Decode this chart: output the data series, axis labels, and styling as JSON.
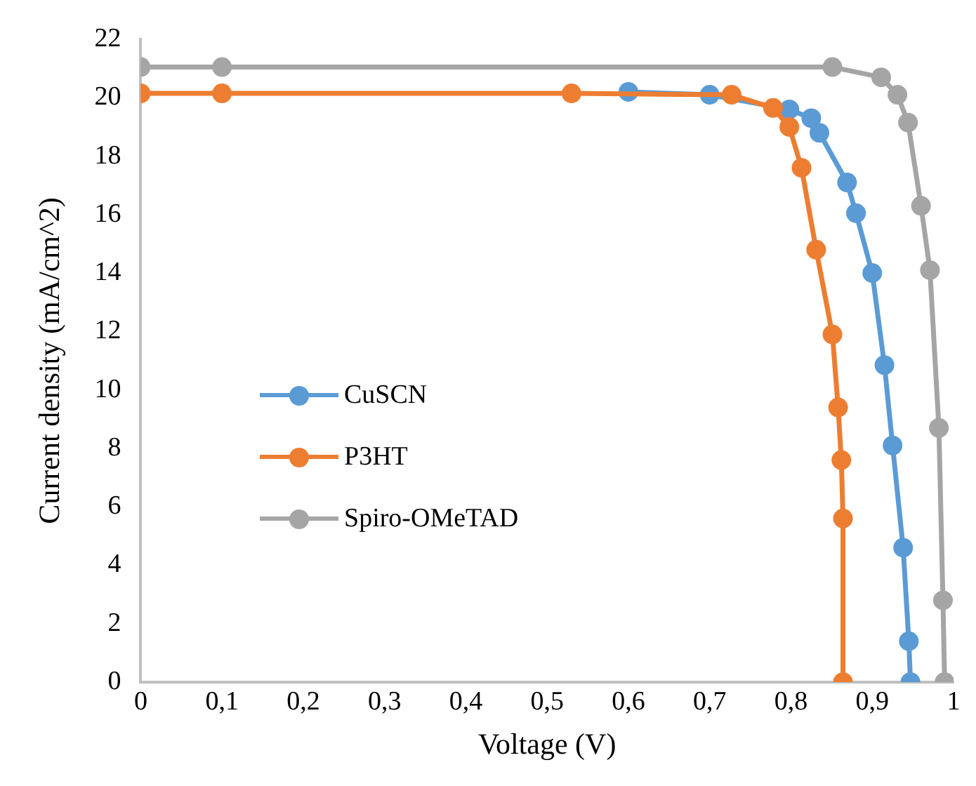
{
  "chart_data": {
    "type": "line",
    "xlabel": "Voltage (V)",
    "ylabel": "Current density (mA/cm^2)",
    "xlim": [
      0,
      1
    ],
    "xticks": [
      0,
      {
        "value": 0.1,
        "label": "0,1"
      },
      {
        "value": 0.2,
        "label": "0,2"
      },
      {
        "value": 0.3,
        "label": "0,3"
      },
      {
        "value": 0.4,
        "label": "0,4"
      },
      {
        "value": 0.5,
        "label": "0,5"
      },
      {
        "value": 0.6,
        "label": "0,6"
      },
      {
        "value": 0.7,
        "label": "0,7"
      },
      {
        "value": 0.8,
        "label": "0,8"
      },
      {
        "value": 0.9,
        "label": "0,9"
      },
      1
    ],
    "ylim": [
      0,
      22
    ],
    "yticks": [
      0,
      2,
      4,
      6,
      8,
      10,
      12,
      14,
      16,
      18,
      20,
      22
    ],
    "grid": false,
    "legend": "left",
    "marker": "circle",
    "line_style": "solid",
    "series": [
      {
        "name": "CuSCN",
        "color": "#5b9bd5",
        "x": [
          0.6,
          0.7,
          0.798,
          0.825,
          0.835,
          0.869,
          0.88,
          0.9,
          0.915,
          0.925,
          0.938,
          0.945,
          0.947
        ],
        "values": [
          20.2,
          20.1,
          19.6,
          19.3,
          18.8,
          17.1,
          16.05,
          14.0,
          10.85,
          8.1,
          4.6,
          1.4,
          0
        ]
      },
      {
        "name": "P3HT",
        "color": "#ed7d31",
        "x": [
          0,
          0.1,
          0.53,
          0.727,
          0.778,
          0.798,
          0.813,
          0.831,
          0.851,
          0.858,
          0.862,
          0.864,
          0.864
        ],
        "values": [
          20.15,
          20.15,
          20.15,
          20.1,
          19.65,
          19.0,
          17.6,
          14.8,
          11.9,
          9.4,
          7.6,
          5.6,
          0
        ]
      },
      {
        "name": "Spiro-OMeTAD",
        "color": "#a5a5a5",
        "x": [
          0,
          0.1,
          0.851,
          0.911,
          0.931,
          0.944,
          0.96,
          0.971,
          0.982,
          0.987,
          0.989
        ],
        "values": [
          21.05,
          21.05,
          21.05,
          20.7,
          20.1,
          19.15,
          16.3,
          14.1,
          8.7,
          2.8,
          0
        ]
      }
    ]
  }
}
